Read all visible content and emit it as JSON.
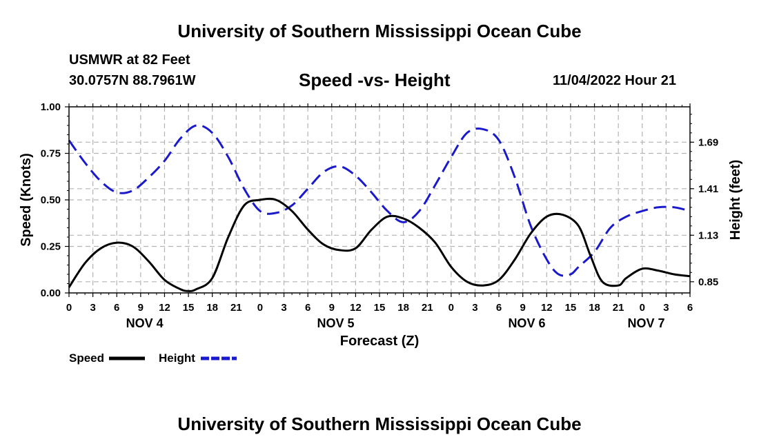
{
  "page": {
    "title_top": "University of Southern Mississippi Ocean Cube",
    "title_bottom": "University of Southern Mississippi Ocean Cube",
    "station": "USMWR at 82 Feet",
    "coords": "30.0757N  88.7961W",
    "chart_title": "Speed -vs- Height",
    "timestamp": "11/04/2022 Hour 21"
  },
  "chart_data": {
    "type": "line",
    "title": "Speed -vs- Height",
    "xlabel": "Forecast (Z)",
    "ylabel": "Speed (Knots)",
    "y2label": "Height (feet)",
    "x_hours": [
      0,
      3,
      6,
      9,
      12,
      15,
      18,
      21,
      24,
      27,
      30,
      33,
      36,
      39,
      42,
      45,
      48,
      51,
      54,
      57,
      60,
      63,
      66,
      69,
      72,
      75,
      78
    ],
    "x_tick_labels": [
      "0",
      "3",
      "6",
      "9",
      "12",
      "15",
      "18",
      "21",
      "0",
      "3",
      "6",
      "9",
      "12",
      "15",
      "18",
      "21",
      "0",
      "3",
      "6",
      "9",
      "12",
      "15",
      "18",
      "21",
      "0",
      "3",
      "6"
    ],
    "day_labels": [
      {
        "label": "NOV 4",
        "hour": 9.5
      },
      {
        "label": "NOV 5",
        "hour": 33.5
      },
      {
        "label": "NOV 6",
        "hour": 57.5
      },
      {
        "label": "NOV 7",
        "hour": 72.5
      }
    ],
    "ylim": [
      0,
      1
    ],
    "y_ticks": [
      "0.00",
      "0.25",
      "0.50",
      "0.75",
      "1.00"
    ],
    "y2_ticks": [
      {
        "label": "0.85",
        "speed_equiv": 0.06
      },
      {
        "label": "1.13",
        "speed_equiv": 0.31
      },
      {
        "label": "1.41",
        "speed_equiv": 0.56
      },
      {
        "label": "1.69",
        "speed_equiv": 0.81
      }
    ],
    "series": [
      {
        "name": "Speed",
        "color": "#000000",
        "dashed": false,
        "axis": "left",
        "x": [
          0,
          2,
          4,
          6,
          8,
          10,
          12,
          14,
          15,
          16,
          18,
          20,
          22,
          24,
          26,
          28,
          30,
          32,
          34,
          36,
          38,
          40,
          42,
          44,
          46,
          48,
          50,
          52,
          54,
          56,
          58,
          60,
          62,
          64,
          65.5,
          67,
          69,
          70,
          72,
          74,
          76,
          78
        ],
        "values": [
          0.03,
          0.16,
          0.24,
          0.27,
          0.25,
          0.17,
          0.07,
          0.02,
          0.01,
          0.02,
          0.08,
          0.3,
          0.47,
          0.5,
          0.5,
          0.44,
          0.34,
          0.26,
          0.23,
          0.24,
          0.34,
          0.41,
          0.4,
          0.35,
          0.27,
          0.14,
          0.06,
          0.04,
          0.07,
          0.18,
          0.32,
          0.41,
          0.42,
          0.36,
          0.2,
          0.06,
          0.04,
          0.08,
          0.13,
          0.12,
          0.1,
          0.09
        ]
      },
      {
        "name": "Height",
        "color": "#1a1acc",
        "dashed": true,
        "axis": "right",
        "x": [
          0,
          2,
          4,
          6,
          8,
          10,
          12,
          14,
          16,
          18,
          20,
          22,
          24,
          26,
          28,
          30,
          32,
          34,
          36,
          38,
          40,
          42,
          44,
          46,
          48,
          50,
          52,
          54,
          56,
          58,
          60,
          61.5,
          63,
          64,
          66,
          68,
          70,
          72,
          74,
          76,
          78
        ],
        "values": [
          0.82,
          0.7,
          0.6,
          0.54,
          0.55,
          0.62,
          0.71,
          0.83,
          0.9,
          0.86,
          0.73,
          0.56,
          0.44,
          0.43,
          0.47,
          0.56,
          0.65,
          0.68,
          0.63,
          0.54,
          0.44,
          0.38,
          0.44,
          0.58,
          0.73,
          0.86,
          0.88,
          0.82,
          0.62,
          0.36,
          0.18,
          0.1,
          0.1,
          0.14,
          0.22,
          0.35,
          0.41,
          0.44,
          0.46,
          0.46,
          0.44
        ]
      }
    ],
    "legend": [
      {
        "label": "Speed",
        "color": "#000000",
        "dashed": false
      },
      {
        "label": "Height",
        "color": "#1a1acc",
        "dashed": true
      }
    ],
    "grid": true
  }
}
